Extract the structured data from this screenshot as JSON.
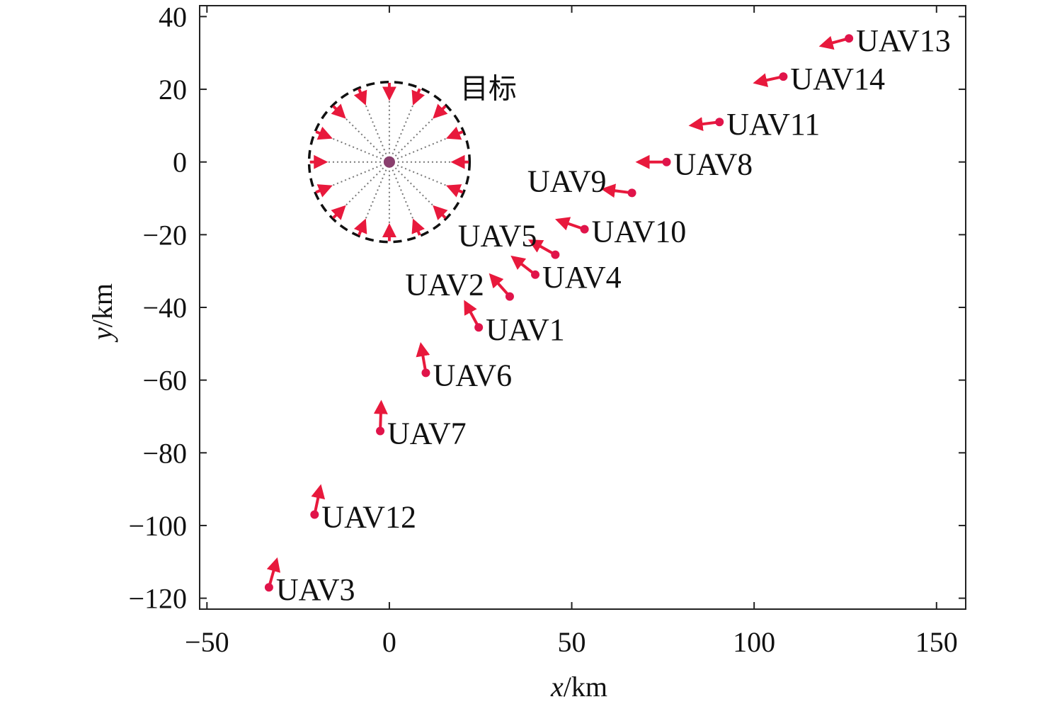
{
  "chart_data": {
    "type": "scatter",
    "title": "",
    "xlabel": {
      "var": "x",
      "unit": "/km"
    },
    "ylabel": {
      "var": "y",
      "unit": "/km"
    },
    "xlim": [
      -52,
      158
    ],
    "ylim": [
      -123,
      43
    ],
    "xticks": [
      -50,
      0,
      50,
      100,
      150
    ],
    "yticks": [
      -120,
      -100,
      -80,
      -60,
      -40,
      -20,
      0,
      20,
      40
    ],
    "xtick_labels": [
      "−50",
      "0",
      "50",
      "100",
      "150"
    ],
    "ytick_labels": [
      "−120",
      "−100",
      "−80",
      "−60",
      "−40",
      "−20",
      "0",
      "20",
      "40"
    ],
    "grid": false,
    "target": {
      "label": "目标",
      "center": [
        0,
        0
      ],
      "radius_km": 22,
      "arrow_count": 16
    },
    "uavs": [
      {
        "name": "UAV1",
        "x": 24.5,
        "y": -45.5
      },
      {
        "name": "UAV2",
        "x": 33.0,
        "y": -37.0
      },
      {
        "name": "UAV3",
        "x": -33.0,
        "y": -117.0
      },
      {
        "name": "UAV4",
        "x": 40.0,
        "y": -31.0
      },
      {
        "name": "UAV5",
        "x": 45.5,
        "y": -25.5
      },
      {
        "name": "UAV6",
        "x": 10.0,
        "y": -58.0
      },
      {
        "name": "UAV7",
        "x": -2.5,
        "y": -74.0
      },
      {
        "name": "UAV8",
        "x": 76.0,
        "y": 0.0
      },
      {
        "name": "UAV9",
        "x": 66.5,
        "y": -8.5
      },
      {
        "name": "UAV10",
        "x": 53.5,
        "y": -18.5
      },
      {
        "name": "UAV11",
        "x": 90.5,
        "y": 11.0
      },
      {
        "name": "UAV12",
        "x": -20.5,
        "y": -97.0
      },
      {
        "name": "UAV13",
        "x": 126.0,
        "y": 34.0
      },
      {
        "name": "UAV14",
        "x": 108.0,
        "y": 23.5
      }
    ],
    "colors": {
      "arrow": "#e8193c",
      "dot": "#e0144a",
      "circle": "#111111",
      "spokes": "#777777",
      "axis": "#222222"
    }
  }
}
